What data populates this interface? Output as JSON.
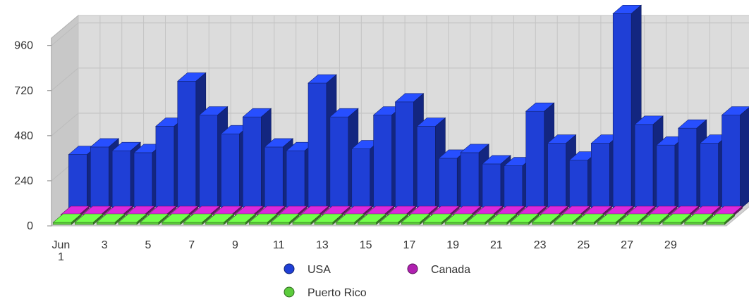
{
  "chart_data": {
    "type": "bar",
    "three_d": true,
    "x": [
      "Jun 1",
      "2",
      "3",
      "4",
      "5",
      "6",
      "7",
      "8",
      "9",
      "10",
      "11",
      "12",
      "13",
      "14",
      "15",
      "16",
      "17",
      "18",
      "19",
      "20",
      "21",
      "22",
      "23",
      "24",
      "25",
      "26",
      "27",
      "28",
      "29",
      "30",
      "31"
    ],
    "x_tick_labels": [
      {
        "index": 0,
        "lines": [
          "Jun",
          "1"
        ]
      },
      {
        "index": 2,
        "lines": [
          "3"
        ]
      },
      {
        "index": 4,
        "lines": [
          "5"
        ]
      },
      {
        "index": 6,
        "lines": [
          "7"
        ]
      },
      {
        "index": 8,
        "lines": [
          "9"
        ]
      },
      {
        "index": 10,
        "lines": [
          "11"
        ]
      },
      {
        "index": 12,
        "lines": [
          "13"
        ]
      },
      {
        "index": 14,
        "lines": [
          "15"
        ]
      },
      {
        "index": 16,
        "lines": [
          "17"
        ]
      },
      {
        "index": 18,
        "lines": [
          "19"
        ]
      },
      {
        "index": 20,
        "lines": [
          "21"
        ]
      },
      {
        "index": 22,
        "lines": [
          "23"
        ]
      },
      {
        "index": 24,
        "lines": [
          "25"
        ]
      },
      {
        "index": 26,
        "lines": [
          "27"
        ]
      },
      {
        "index": 28,
        "lines": [
          "29"
        ]
      }
    ],
    "y_ticks": [
      "0",
      "240",
      "480",
      "720",
      "960"
    ],
    "ylim": [
      0,
      1000
    ],
    "series": [
      {
        "name": "USA",
        "color": "#1f3fd6",
        "values": [
          290,
          330,
          310,
          300,
          440,
          680,
          500,
          400,
          490,
          330,
          310,
          670,
          490,
          320,
          500,
          570,
          440,
          270,
          300,
          240,
          230,
          520,
          350,
          260,
          350,
          1040,
          450,
          340,
          430,
          350,
          500
        ]
      },
      {
        "name": "Canada",
        "color": "#b020b0",
        "values": [
          8,
          8,
          8,
          8,
          8,
          8,
          8,
          8,
          8,
          8,
          8,
          8,
          8,
          8,
          8,
          8,
          8,
          8,
          8,
          8,
          8,
          8,
          8,
          8,
          8,
          8,
          8,
          8,
          8,
          8,
          8
        ]
      },
      {
        "name": "Puerto Rico",
        "color": "#5ccc3c",
        "values": [
          3,
          3,
          3,
          3,
          3,
          3,
          3,
          3,
          3,
          3,
          3,
          3,
          3,
          3,
          3,
          3,
          3,
          3,
          3,
          3,
          3,
          3,
          3,
          3,
          3,
          3,
          3,
          3,
          3,
          3,
          3
        ]
      }
    ],
    "grid": true,
    "legend_position": "bottom-center"
  }
}
